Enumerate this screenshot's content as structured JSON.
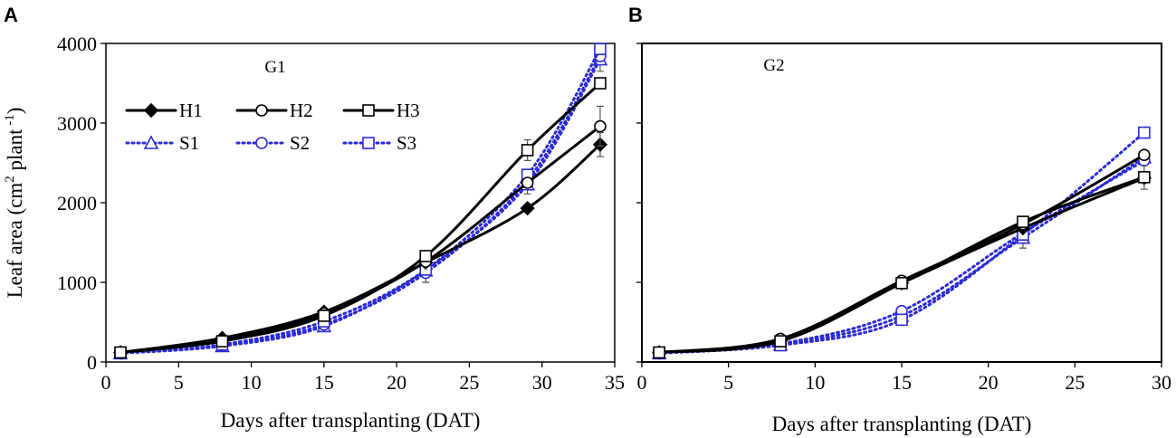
{
  "colors": {
    "H": "#000000",
    "S": "#2b2bd6"
  },
  "chart_data": [
    {
      "panel": "A",
      "type": "line",
      "title": "G1",
      "xlabel": "Days after transplanting (DAT)",
      "ylabel": "Leaf area  (cm",
      "ylabel_sup": "2",
      "ylabel_mid": " plant",
      "ylabel_sup2": " -1",
      "ylabel_end": ")",
      "xlim": [
        0,
        35
      ],
      "ylim": [
        0,
        4000
      ],
      "xticks": [
        0,
        5,
        10,
        15,
        20,
        25,
        30,
        35
      ],
      "yticks": [
        0,
        1000,
        2000,
        3000,
        4000
      ],
      "x": [
        1,
        8,
        15,
        22,
        29,
        34
      ],
      "series": [
        {
          "name": "H1",
          "style": "solid",
          "marker": "diamond",
          "values": [
            120,
            300,
            630,
            1250,
            1930,
            2730
          ],
          "errors": [
            0,
            0,
            0,
            0,
            0,
            150
          ]
        },
        {
          "name": "H2",
          "style": "solid",
          "marker": "circle",
          "values": [
            120,
            270,
            610,
            1260,
            2250,
            2960
          ],
          "errors": [
            0,
            0,
            0,
            0,
            0,
            250
          ]
        },
        {
          "name": "H3",
          "style": "solid",
          "marker": "square",
          "values": [
            120,
            260,
            580,
            1330,
            2660,
            3500
          ],
          "errors": [
            0,
            0,
            0,
            0,
            130,
            0
          ]
        },
        {
          "name": "S1",
          "style": "dotted",
          "marker": "triangle",
          "values": [
            110,
            200,
            450,
            1150,
            2230,
            3800
          ],
          "errors": [
            0,
            0,
            0,
            150,
            120,
            150
          ]
        },
        {
          "name": "S2",
          "style": "dotted",
          "marker": "circle",
          "values": [
            110,
            210,
            470,
            1120,
            2280,
            3840
          ],
          "errors": [
            0,
            0,
            0,
            0,
            0,
            0
          ]
        },
        {
          "name": "S3",
          "style": "dotted",
          "marker": "square",
          "values": [
            110,
            220,
            510,
            1160,
            2350,
            3930
          ],
          "errors": [
            0,
            0,
            0,
            0,
            0,
            0
          ]
        }
      ]
    },
    {
      "panel": "B",
      "type": "line",
      "title": "G2",
      "xlabel": "Days after transplanting (DAT)",
      "xlim": [
        0,
        30
      ],
      "ylim": [
        0,
        4000
      ],
      "xticks": [
        0,
        5,
        10,
        15,
        20,
        25,
        30
      ],
      "yticks": [
        0,
        1000,
        2000,
        3000,
        4000
      ],
      "x": [
        1,
        8,
        15,
        22,
        29
      ],
      "series": [
        {
          "name": "H1",
          "style": "solid",
          "marker": "diamond",
          "values": [
            120,
            270,
            990,
            1680,
            2310
          ],
          "errors": [
            0,
            0,
            0,
            0,
            0
          ]
        },
        {
          "name": "H2",
          "style": "solid",
          "marker": "circle",
          "values": [
            120,
            290,
            1020,
            1730,
            2600
          ],
          "errors": [
            0,
            0,
            0,
            0,
            0
          ]
        },
        {
          "name": "H3",
          "style": "solid",
          "marker": "square",
          "values": [
            120,
            260,
            990,
            1760,
            2320
          ],
          "errors": [
            0,
            0,
            0,
            0,
            150
          ]
        },
        {
          "name": "S1",
          "style": "dotted",
          "marker": "triangle",
          "values": [
            110,
            220,
            580,
            1560,
            2570
          ],
          "errors": [
            0,
            0,
            0,
            130,
            0
          ]
        },
        {
          "name": "S2",
          "style": "dotted",
          "marker": "circle",
          "values": [
            110,
            230,
            640,
            1620,
            2530
          ],
          "errors": [
            0,
            0,
            0,
            0,
            0
          ]
        },
        {
          "name": "S3",
          "style": "dotted",
          "marker": "square",
          "values": [
            110,
            210,
            530,
            1600,
            2880
          ],
          "errors": [
            0,
            0,
            0,
            0,
            0
          ]
        }
      ]
    }
  ]
}
